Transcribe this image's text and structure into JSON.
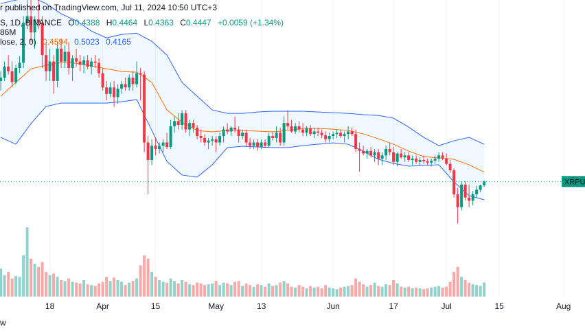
{
  "chart_data": {
    "type": "candlestick",
    "publisher": "r published on TradingView.com, Jul 11, 2024 10:50 UTC+3",
    "symbol": "S, 1D, BINANCE",
    "ohlc_letters": [
      "O",
      "H",
      "L",
      "C"
    ],
    "change_label": "+0.0059 (+1.34%)",
    "volume_label": "86M",
    "bb_label": "lose, 2, 0)",
    "price_tag": "XRPUS",
    "corner_text": "w",
    "up_color": "#089981",
    "down_color": "#f23645",
    "volume_up_color": "#92d2cc",
    "volume_down_color": "#f7a9a7",
    "xlim": [
      -0.2,
      154.7
    ],
    "ylim": [
      0.267,
      0.725
    ],
    "volume_ylim": [
      0,
      1800
    ],
    "xticks": [
      {
        "value": 13,
        "label": "18"
      },
      {
        "value": 27,
        "label": "Apr"
      },
      {
        "value": 41,
        "label": "15"
      },
      {
        "value": 57,
        "label": "May"
      },
      {
        "value": 69,
        "label": "13"
      },
      {
        "value": 88,
        "label": "Jun"
      },
      {
        "value": 104,
        "label": "17"
      },
      {
        "value": 118,
        "label": "Jul"
      },
      {
        "value": 132,
        "label": "15"
      },
      {
        "value": 149,
        "label": "Aug"
      }
    ],
    "x": [
      0,
      1,
      2,
      3,
      4,
      5,
      6,
      7,
      8,
      9,
      10,
      11,
      12,
      13,
      14,
      15,
      16,
      17,
      18,
      19,
      20,
      21,
      22,
      23,
      24,
      25,
      26,
      27,
      28,
      29,
      30,
      31,
      32,
      33,
      34,
      35,
      36,
      37,
      38,
      39,
      40,
      41,
      42,
      43,
      44,
      45,
      46,
      47,
      48,
      49,
      50,
      51,
      52,
      53,
      54,
      55,
      56,
      57,
      58,
      59,
      60,
      61,
      62,
      63,
      64,
      65,
      66,
      67,
      68,
      69,
      70,
      71,
      72,
      73,
      74,
      75,
      76,
      77,
      78,
      79,
      80,
      81,
      82,
      83,
      84,
      85,
      86,
      87,
      88,
      89,
      90,
      91,
      92,
      93,
      94,
      95,
      96,
      97,
      98,
      99,
      100,
      101,
      102,
      103,
      104,
      105,
      106,
      107,
      108,
      109,
      110,
      111,
      112,
      113,
      114,
      115,
      116,
      117,
      118,
      119,
      120,
      121,
      122,
      123,
      124,
      125,
      126,
      127,
      128
    ],
    "open": [
      0.6,
      0.605,
      0.622,
      0.615,
      0.598,
      0.62,
      0.628,
      0.69,
      0.7,
      0.675,
      0.695,
      0.69,
      0.64,
      0.615,
      0.63,
      0.6,
      0.65,
      0.63,
      0.645,
      0.62,
      0.635,
      0.63,
      0.625,
      0.632,
      0.622,
      0.63,
      0.628,
      0.612,
      0.59,
      0.58,
      0.59,
      0.575,
      0.588,
      0.595,
      0.59,
      0.605,
      0.595,
      0.612,
      0.61,
      0.505,
      0.478,
      0.5,
      0.495,
      0.5,
      0.505,
      0.498,
      0.53,
      0.538,
      0.532,
      0.55,
      0.525,
      0.535,
      0.528,
      0.515,
      0.512,
      0.505,
      0.508,
      0.51,
      0.505,
      0.515,
      0.525,
      0.522,
      0.528,
      0.525,
      0.515,
      0.52,
      0.505,
      0.5,
      0.505,
      0.498,
      0.505,
      0.5,
      0.515,
      0.512,
      0.52,
      0.505,
      0.535,
      0.53,
      0.522,
      0.53,
      0.525,
      0.52,
      0.527,
      0.518,
      0.522,
      0.52,
      0.516,
      0.51,
      0.515,
      0.518,
      0.52,
      0.515,
      0.518,
      0.522,
      0.518,
      0.495,
      0.492,
      0.488,
      0.492,
      0.485,
      0.49,
      0.48,
      0.485,
      0.495,
      0.49,
      0.475,
      0.488,
      0.482,
      0.485,
      0.478,
      0.48,
      0.475,
      0.478,
      0.476,
      0.474,
      0.477,
      0.48,
      0.485,
      0.48,
      0.472,
      0.462,
      0.425,
      0.405,
      0.44,
      0.42,
      0.415,
      0.425,
      0.432,
      0.4388
    ],
    "high": [
      0.615,
      0.63,
      0.64,
      0.63,
      0.625,
      0.638,
      0.7,
      0.745,
      0.725,
      0.7,
      0.725,
      0.7,
      0.66,
      0.65,
      0.64,
      0.66,
      0.665,
      0.655,
      0.66,
      0.64,
      0.65,
      0.64,
      0.638,
      0.64,
      0.636,
      0.64,
      0.635,
      0.62,
      0.6,
      0.598,
      0.6,
      0.595,
      0.6,
      0.605,
      0.61,
      0.615,
      0.63,
      0.62,
      0.615,
      0.515,
      0.51,
      0.512,
      0.505,
      0.51,
      0.52,
      0.54,
      0.545,
      0.55,
      0.555,
      0.555,
      0.54,
      0.54,
      0.532,
      0.525,
      0.518,
      0.512,
      0.515,
      0.515,
      0.52,
      0.53,
      0.535,
      0.53,
      0.545,
      0.53,
      0.525,
      0.525,
      0.512,
      0.51,
      0.51,
      0.51,
      0.51,
      0.52,
      0.522,
      0.53,
      0.528,
      0.545,
      0.555,
      0.54,
      0.535,
      0.538,
      0.535,
      0.53,
      0.532,
      0.528,
      0.528,
      0.525,
      0.522,
      0.52,
      0.522,
      0.525,
      0.525,
      0.522,
      0.53,
      0.528,
      0.525,
      0.505,
      0.5,
      0.495,
      0.498,
      0.495,
      0.495,
      0.49,
      0.5,
      0.505,
      0.498,
      0.49,
      0.495,
      0.49,
      0.49,
      0.485,
      0.485,
      0.482,
      0.485,
      0.48,
      0.48,
      0.485,
      0.49,
      0.49,
      0.488,
      0.478,
      0.465,
      0.435,
      0.445,
      0.445,
      0.44,
      0.43,
      0.438,
      0.44,
      0.4464
    ],
    "low": [
      0.585,
      0.6,
      0.61,
      0.59,
      0.595,
      0.612,
      0.62,
      0.68,
      0.66,
      0.65,
      0.68,
      0.62,
      0.6,
      0.6,
      0.58,
      0.59,
      0.62,
      0.62,
      0.61,
      0.6,
      0.622,
      0.615,
      0.612,
      0.618,
      0.61,
      0.62,
      0.605,
      0.585,
      0.57,
      0.575,
      0.56,
      0.565,
      0.58,
      0.585,
      0.585,
      0.585,
      0.59,
      0.57,
      0.49,
      0.425,
      0.47,
      0.485,
      0.488,
      0.49,
      0.495,
      0.495,
      0.52,
      0.525,
      0.525,
      0.52,
      0.515,
      0.52,
      0.51,
      0.505,
      0.5,
      0.495,
      0.5,
      0.49,
      0.5,
      0.505,
      0.518,
      0.515,
      0.52,
      0.505,
      0.51,
      0.5,
      0.495,
      0.495,
      0.492,
      0.495,
      0.496,
      0.498,
      0.508,
      0.505,
      0.5,
      0.5,
      0.525,
      0.52,
      0.518,
      0.52,
      0.515,
      0.515,
      0.515,
      0.512,
      0.515,
      0.512,
      0.505,
      0.505,
      0.51,
      0.512,
      0.512,
      0.505,
      0.51,
      0.515,
      0.49,
      0.46,
      0.485,
      0.48,
      0.482,
      0.475,
      0.47,
      0.47,
      0.478,
      0.485,
      0.47,
      0.468,
      0.48,
      0.475,
      0.475,
      0.47,
      0.472,
      0.47,
      0.472,
      0.47,
      0.468,
      0.472,
      0.475,
      0.478,
      0.47,
      0.458,
      0.42,
      0.38,
      0.4,
      0.415,
      0.405,
      0.408,
      0.42,
      0.428,
      0.4363
    ],
    "close": [
      0.605,
      0.622,
      0.615,
      0.598,
      0.62,
      0.628,
      0.69,
      0.7,
      0.675,
      0.695,
      0.69,
      0.64,
      0.615,
      0.63,
      0.6,
      0.65,
      0.63,
      0.645,
      0.62,
      0.635,
      0.63,
      0.625,
      0.632,
      0.622,
      0.63,
      0.628,
      0.612,
      0.59,
      0.58,
      0.59,
      0.575,
      0.588,
      0.595,
      0.59,
      0.605,
      0.595,
      0.612,
      0.61,
      0.505,
      0.478,
      0.5,
      0.495,
      0.5,
      0.505,
      0.498,
      0.53,
      0.538,
      0.532,
      0.55,
      0.525,
      0.535,
      0.528,
      0.515,
      0.512,
      0.505,
      0.508,
      0.51,
      0.505,
      0.515,
      0.525,
      0.522,
      0.528,
      0.525,
      0.515,
      0.52,
      0.505,
      0.5,
      0.505,
      0.498,
      0.505,
      0.5,
      0.515,
      0.512,
      0.52,
      0.505,
      0.535,
      0.53,
      0.522,
      0.53,
      0.525,
      0.52,
      0.527,
      0.518,
      0.522,
      0.52,
      0.516,
      0.51,
      0.515,
      0.518,
      0.52,
      0.515,
      0.518,
      0.522,
      0.518,
      0.495,
      0.492,
      0.488,
      0.492,
      0.485,
      0.49,
      0.48,
      0.485,
      0.495,
      0.49,
      0.475,
      0.488,
      0.482,
      0.485,
      0.478,
      0.48,
      0.475,
      0.478,
      0.476,
      0.474,
      0.477,
      0.48,
      0.485,
      0.48,
      0.472,
      0.462,
      0.425,
      0.405,
      0.44,
      0.42,
      0.415,
      0.425,
      0.432,
      0.4388,
      0.4447
    ],
    "volume": [
      170,
      130,
      150,
      110,
      125,
      120,
      250,
      420,
      230,
      200,
      180,
      210,
      150,
      130,
      140,
      120,
      100,
      95,
      110,
      90,
      85,
      80,
      100,
      75,
      70,
      65,
      80,
      90,
      120,
      95,
      115,
      100,
      90,
      70,
      85,
      95,
      110,
      190,
      250,
      230,
      150,
      120,
      100,
      90,
      85,
      110,
      95,
      80,
      100,
      90,
      75,
      70,
      85,
      80,
      70,
      75,
      80,
      95,
      70,
      85,
      80,
      70,
      90,
      95,
      65,
      80,
      70,
      60,
      75,
      70,
      60,
      80,
      65,
      70,
      85,
      95,
      80,
      60,
      55,
      70,
      60,
      50,
      65,
      55,
      60,
      50,
      70,
      55,
      50,
      45,
      55,
      60,
      65,
      70,
      110,
      90,
      75,
      60,
      70,
      85,
      65,
      60,
      75,
      70,
      100,
      80,
      60,
      55,
      60,
      50,
      55,
      50,
      45,
      50,
      55,
      60,
      65,
      55,
      60,
      90,
      150,
      180,
      120,
      100,
      85,
      75,
      70,
      65,
      86
    ],
    "bands": {
      "x": [
        0,
        4,
        8,
        12,
        16,
        20,
        24,
        28,
        32,
        36,
        40,
        44,
        48,
        52,
        56,
        60,
        64,
        68,
        72,
        76,
        80,
        84,
        88,
        92,
        96,
        100,
        104,
        108,
        112,
        116,
        120,
        124,
        128
      ],
      "upper_color": "#2962ff",
      "basis_color": "#ff6d00",
      "fill_color": "rgba(33,150,243,0.07)",
      "upper": [
        0.7195,
        0.7248,
        0.7301,
        0.7195,
        0.7036,
        0.693,
        0.6771,
        0.6665,
        0.6718,
        0.6739,
        0.6612,
        0.64,
        0.5977,
        0.5765,
        0.5553,
        0.55,
        0.55,
        0.5521,
        0.5532,
        0.5532,
        0.5532,
        0.5521,
        0.551,
        0.55,
        0.5479,
        0.5468,
        0.5426,
        0.5288,
        0.5129,
        0.5002,
        0.5076,
        0.5129,
        0.5023
      ],
      "basis": [
        0.5765,
        0.5977,
        0.6188,
        0.6241,
        0.6294,
        0.6273,
        0.6231,
        0.6188,
        0.6146,
        0.6136,
        0.5977,
        0.5553,
        0.5362,
        0.5235,
        0.5214,
        0.5235,
        0.5235,
        0.5225,
        0.5214,
        0.5235,
        0.5267,
        0.5267,
        0.5256,
        0.5235,
        0.5182,
        0.5108,
        0.5023,
        0.4917,
        0.4833,
        0.4811,
        0.479,
        0.4705,
        0.4594
      ],
      "lower": [
        0.5129,
        0.5023,
        0.5341,
        0.5606,
        0.5659,
        0.5659,
        0.5659,
        0.5659,
        0.568,
        0.5712,
        0.5235,
        0.4759,
        0.4547,
        0.4515,
        0.4706,
        0.4971,
        0.4992,
        0.4981,
        0.4971,
        0.4971,
        0.5002,
        0.5023,
        0.5044,
        0.5023,
        0.4917,
        0.479,
        0.4727,
        0.4684,
        0.4695,
        0.4706,
        0.4441,
        0.4229,
        0.4165
      ]
    }
  }
}
